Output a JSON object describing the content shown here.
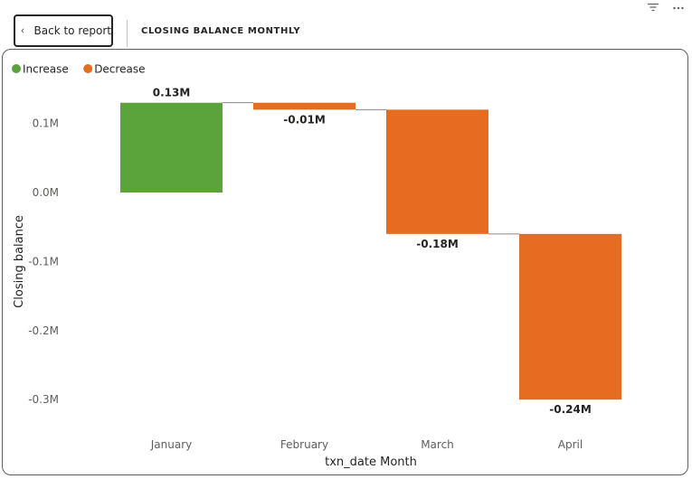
{
  "header": {
    "back_label": "Back to report",
    "visual_title": "CLOSING BALANCE MONTHLY"
  },
  "icons": [
    "filter-icon",
    "more-options-icon"
  ],
  "colors": {
    "increase": "#5ba33b",
    "decrease": "#e66c1f",
    "connector": "#8a8886",
    "text": "#252423",
    "axis_text": "#605e5c"
  },
  "chart_data": {
    "type": "waterfall",
    "title": "CLOSING BALANCE MONTHLY",
    "xlabel": "txn_date Month",
    "ylabel": "Closing balance",
    "categories": [
      "January",
      "February",
      "March",
      "April"
    ],
    "values": [
      0.13,
      -0.01,
      -0.18,
      -0.24
    ],
    "data_labels": [
      "0.13M",
      "-0.01M",
      "-0.18M",
      "-0.24M"
    ],
    "unit": "M",
    "ylim": [
      -0.31,
      0.13
    ],
    "yticks": [
      0.1,
      0.0,
      -0.1,
      -0.2,
      -0.3
    ],
    "ytick_labels": [
      "0.1M",
      "0.0M",
      "-0.1M",
      "-0.2M",
      "-0.3M"
    ],
    "legend": [
      {
        "name": "Increase",
        "color": "#5ba33b"
      },
      {
        "name": "Decrease",
        "color": "#e66c1f"
      }
    ],
    "legend_position": "top-left",
    "grid": false
  }
}
